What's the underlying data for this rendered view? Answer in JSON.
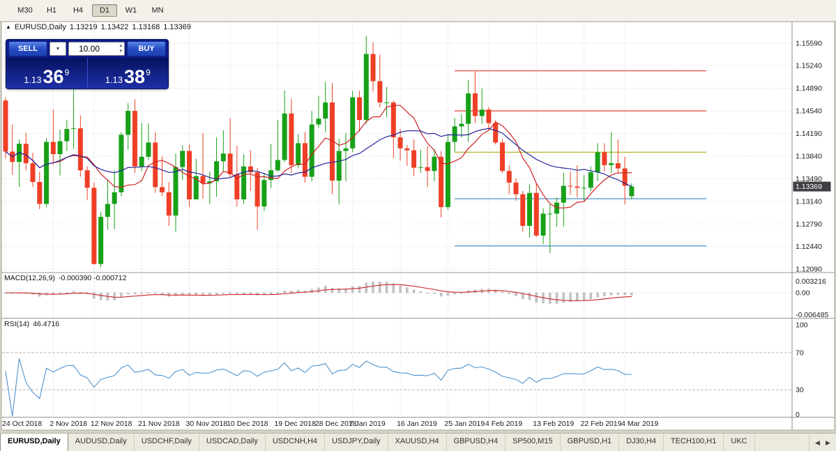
{
  "toolbar": {
    "buttons": [
      {
        "label": "M30",
        "active": false
      },
      {
        "label": "H1",
        "active": false
      },
      {
        "label": "H4",
        "active": false
      },
      {
        "label": "D1",
        "active": true
      },
      {
        "label": "W1",
        "active": false
      },
      {
        "label": "MN",
        "active": false
      }
    ]
  },
  "header": {
    "arrow": "▲",
    "symbol": "EURUSD,Daily",
    "open": "1.13219",
    "high": "1.13422",
    "low": "1.13168",
    "close": "1.13369"
  },
  "trade_panel": {
    "sell_label": "SELL",
    "buy_label": "BUY",
    "volume": "10.00",
    "bid": {
      "prefix": "1.13",
      "big": "36",
      "sup": "9"
    },
    "ask": {
      "prefix": "1.13",
      "big": "38",
      "sup": "9"
    }
  },
  "chart_data": {
    "type": "candlestick",
    "title": "EURUSD,Daily",
    "price_axis_top": 1.1576,
    "price_axis_bottom": 1.1207,
    "current_price": "1.13369",
    "price_ticks": [
      "1.15590",
      "1.15240",
      "1.14890",
      "1.14540",
      "1.14190",
      "1.13840",
      "1.13490",
      "1.13140",
      "1.12790",
      "1.12440",
      "1.12090"
    ],
    "date_ticks": [
      {
        "bar": 0,
        "label": "24 Oct 2018"
      },
      {
        "bar": 7,
        "label": "2 Nov 2018"
      },
      {
        "bar": 13,
        "label": "12 Nov 2018"
      },
      {
        "bar": 20,
        "label": "21 Nov 2018"
      },
      {
        "bar": 27,
        "label": "30 Nov 2018"
      },
      {
        "bar": 33,
        "label": "10 Dec 2018"
      },
      {
        "bar": 40,
        "label": "19 Dec 2018"
      },
      {
        "bar": 46,
        "label": "28 Dec 2018"
      },
      {
        "bar": 51,
        "label": "7 Jan 2019"
      },
      {
        "bar": 58,
        "label": "16 Jan 2019"
      },
      {
        "bar": 65,
        "label": "25 Jan 2019"
      },
      {
        "bar": 71,
        "label": "4 Feb 2019"
      },
      {
        "bar": 78,
        "label": "13 Feb 2019"
      },
      {
        "bar": 85,
        "label": "22 Feb 2019"
      },
      {
        "bar": 91,
        "label": "4 Mar 2019"
      }
    ],
    "ohlc_order": [
      "open",
      "high",
      "low",
      "close"
    ],
    "candles": [
      [
        1.147,
        1.1475,
        1.138,
        1.1391
      ],
      [
        1.1391,
        1.1433,
        1.1355,
        1.1375
      ],
      [
        1.1375,
        1.141,
        1.1336,
        1.1403
      ],
      [
        1.1403,
        1.142,
        1.1362,
        1.1373
      ],
      [
        1.1373,
        1.1389,
        1.1336,
        1.1344
      ],
      [
        1.1344,
        1.136,
        1.1302,
        1.131
      ],
      [
        1.131,
        1.1412,
        1.1305,
        1.1406
      ],
      [
        1.1406,
        1.1456,
        1.1371,
        1.1387
      ],
      [
        1.1387,
        1.1425,
        1.1354,
        1.1407
      ],
      [
        1.1407,
        1.144,
        1.1392,
        1.1426
      ],
      [
        1.1426,
        1.15,
        1.1395,
        1.1427
      ],
      [
        1.1427,
        1.1447,
        1.1352,
        1.1362
      ],
      [
        1.1362,
        1.1368,
        1.1316,
        1.1335
      ],
      [
        1.1335,
        1.1343,
        1.1216,
        1.1217
      ],
      [
        1.1217,
        1.1298,
        1.1212,
        1.129
      ],
      [
        1.129,
        1.1348,
        1.127,
        1.131
      ],
      [
        1.131,
        1.1362,
        1.1271,
        1.1328
      ],
      [
        1.1328,
        1.1421,
        1.1322,
        1.1417
      ],
      [
        1.1417,
        1.1466,
        1.1394,
        1.1454
      ],
      [
        1.1454,
        1.1472,
        1.1358,
        1.1368
      ],
      [
        1.1368,
        1.1435,
        1.1361,
        1.1383
      ],
      [
        1.1383,
        1.1435,
        1.1378,
        1.1405
      ],
      [
        1.1405,
        1.1421,
        1.1327,
        1.1336
      ],
      [
        1.1336,
        1.1383,
        1.1322,
        1.1328
      ],
      [
        1.1328,
        1.1344,
        1.1276,
        1.1292
      ],
      [
        1.1292,
        1.1388,
        1.1267,
        1.1367
      ],
      [
        1.1367,
        1.1401,
        1.1347,
        1.1392
      ],
      [
        1.1392,
        1.1402,
        1.1305,
        1.1317
      ],
      [
        1.1317,
        1.138,
        1.1317,
        1.1353
      ],
      [
        1.1353,
        1.142,
        1.1318,
        1.1342
      ],
      [
        1.1342,
        1.136,
        1.131,
        1.1345
      ],
      [
        1.1345,
        1.1413,
        1.1321,
        1.1376
      ],
      [
        1.1376,
        1.1424,
        1.136,
        1.1388
      ],
      [
        1.1388,
        1.1443,
        1.1351,
        1.1356
      ],
      [
        1.1356,
        1.14,
        1.1306,
        1.1317
      ],
      [
        1.1317,
        1.1387,
        1.131,
        1.1368
      ],
      [
        1.1368,
        1.1393,
        1.133,
        1.1359
      ],
      [
        1.1359,
        1.1365,
        1.127,
        1.1306
      ],
      [
        1.1306,
        1.1358,
        1.1299,
        1.1347
      ],
      [
        1.1347,
        1.1403,
        1.1335,
        1.1362
      ],
      [
        1.1362,
        1.144,
        1.136,
        1.1378
      ],
      [
        1.1378,
        1.1486,
        1.1375,
        1.145
      ],
      [
        1.145,
        1.1473,
        1.1358,
        1.137
      ],
      [
        1.137,
        1.1418,
        1.1365,
        1.1404
      ],
      [
        1.1404,
        1.1421,
        1.1343,
        1.1352
      ],
      [
        1.1352,
        1.1454,
        1.1345,
        1.1433
      ],
      [
        1.1433,
        1.1477,
        1.1428,
        1.1442
      ],
      [
        1.1442,
        1.1499,
        1.1421,
        1.1467
      ],
      [
        1.1467,
        1.1497,
        1.1325,
        1.1346
      ],
      [
        1.1346,
        1.1411,
        1.1309,
        1.1392
      ],
      [
        1.1392,
        1.142,
        1.1345,
        1.1396
      ],
      [
        1.1396,
        1.1485,
        1.139,
        1.1475
      ],
      [
        1.1475,
        1.1485,
        1.1422,
        1.144
      ],
      [
        1.144,
        1.157,
        1.1434,
        1.1542
      ],
      [
        1.1542,
        1.156,
        1.1484,
        1.15
      ],
      [
        1.15,
        1.1541,
        1.1459,
        1.1467
      ],
      [
        1.1467,
        1.1491,
        1.1444,
        1.1467
      ],
      [
        1.1467,
        1.147,
        1.1381,
        1.1413
      ],
      [
        1.1413,
        1.1426,
        1.1377,
        1.1396
      ],
      [
        1.1396,
        1.1401,
        1.1369,
        1.1393
      ],
      [
        1.1393,
        1.141,
        1.1353,
        1.1366
      ],
      [
        1.1366,
        1.1394,
        1.1358,
        1.1367
      ],
      [
        1.1367,
        1.14,
        1.1336,
        1.1361
      ],
      [
        1.1361,
        1.1395,
        1.1345,
        1.1383
      ],
      [
        1.1383,
        1.1392,
        1.1289,
        1.1305
      ],
      [
        1.1305,
        1.1418,
        1.1301,
        1.1406
      ],
      [
        1.1406,
        1.1443,
        1.139,
        1.143
      ],
      [
        1.143,
        1.1449,
        1.1413,
        1.1434
      ],
      [
        1.1434,
        1.1502,
        1.1406,
        1.1481
      ],
      [
        1.1481,
        1.1515,
        1.1435,
        1.1446
      ],
      [
        1.1446,
        1.1489,
        1.1434,
        1.1456
      ],
      [
        1.1456,
        1.146,
        1.1425,
        1.1435
      ],
      [
        1.1435,
        1.144,
        1.1402,
        1.1405
      ],
      [
        1.1405,
        1.141,
        1.1358,
        1.1361
      ],
      [
        1.1361,
        1.137,
        1.1325,
        1.1343
      ],
      [
        1.1343,
        1.135,
        1.1315,
        1.1325
      ],
      [
        1.1325,
        1.133,
        1.1267,
        1.1276
      ],
      [
        1.1276,
        1.134,
        1.1258,
        1.1327
      ],
      [
        1.1327,
        1.1341,
        1.1259,
        1.1261
      ],
      [
        1.1261,
        1.1303,
        1.1248,
        1.1295
      ],
      [
        1.1295,
        1.131,
        1.1234,
        1.1295
      ],
      [
        1.1295,
        1.132,
        1.1275,
        1.1312
      ],
      [
        1.1312,
        1.1358,
        1.1275,
        1.1338
      ],
      [
        1.1338,
        1.136,
        1.1324,
        1.1337
      ],
      [
        1.1337,
        1.137,
        1.132,
        1.1335
      ],
      [
        1.1335,
        1.1355,
        1.1315,
        1.1335
      ],
      [
        1.1335,
        1.1368,
        1.133,
        1.1359
      ],
      [
        1.1359,
        1.1404,
        1.1345,
        1.139
      ],
      [
        1.139,
        1.1404,
        1.136,
        1.137
      ],
      [
        1.137,
        1.1421,
        1.1358,
        1.1373
      ],
      [
        1.1373,
        1.141,
        1.1358,
        1.1365
      ],
      [
        1.1365,
        1.1383,
        1.1309,
        1.1338
      ],
      [
        1.13219,
        1.13422,
        1.13168,
        1.13369
      ]
    ],
    "horizontal_lines": [
      {
        "price": 1.1516,
        "color": "#e05048"
      },
      {
        "price": 1.1454,
        "color": "#e05048"
      },
      {
        "price": 1.139,
        "color": "#b5b520"
      },
      {
        "price": 1.1318,
        "color": "#4a90c8"
      },
      {
        "price": 1.1245,
        "color": "#4a90c8"
      }
    ],
    "moving_averages": [
      {
        "period": 8,
        "color": "#cc2222"
      },
      {
        "period": 21,
        "color": "#24249a"
      }
    ],
    "macd": {
      "label": "MACD(12,26,9)",
      "current": "-0.000390 -0.000712",
      "fast": 12,
      "slow": 26,
      "signal": 9,
      "scale_ticks": [
        "0.003216",
        "0.00",
        "-0.006485"
      ]
    },
    "rsi": {
      "label": "RSI(14)",
      "current": "46.4716",
      "period": 14,
      "levels": [
        70,
        30
      ],
      "scale_ticks": [
        "100",
        "70",
        "30",
        "0"
      ]
    },
    "colors": {
      "up": "#18a018",
      "down": "#ee3f26",
      "grid": "#d8d8d8",
      "macd_hist": "#c4c4c4",
      "macd_signal": "#cc2222",
      "rsi_line": "#4f93ce",
      "price_tag_bg": "#3f3f46"
    }
  },
  "window_tabs": {
    "items": [
      {
        "label": "EURUSD,Daily",
        "active": true
      },
      {
        "label": "AUDUSD,Daily",
        "active": false
      },
      {
        "label": "USDCHF,Daily",
        "active": false
      },
      {
        "label": "USDCAD,Daily",
        "active": false
      },
      {
        "label": "USDCNH,H4",
        "active": false
      },
      {
        "label": "USDJPY,Daily",
        "active": false
      },
      {
        "label": "XAUUSD,H4",
        "active": false
      },
      {
        "label": "GBPUSD,H4",
        "active": false
      },
      {
        "label": "SP500,M15",
        "active": false
      },
      {
        "label": "GBPUSD,H1",
        "active": false
      },
      {
        "label": "DJ30,H4",
        "active": false
      },
      {
        "label": "TECH100,H1",
        "active": false
      },
      {
        "label": "UKC",
        "active": false
      }
    ],
    "scroll_left": "◀",
    "scroll_right": "▶"
  }
}
